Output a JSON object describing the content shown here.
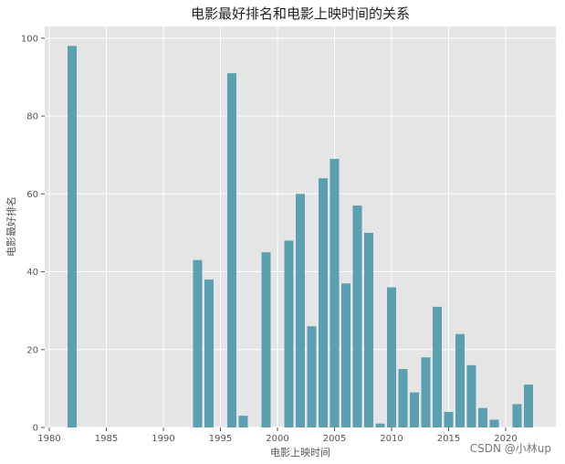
{
  "chart_data": {
    "type": "bar",
    "title": "电影最好排名和电影上映时间的关系",
    "xlabel": "电影上映时间",
    "ylabel": "电影最好排名",
    "xlim": [
      1979.6,
      2024.4
    ],
    "ylim": [
      0,
      103
    ],
    "xticks": [
      1980,
      1985,
      1990,
      1995,
      2000,
      2005,
      2010,
      2015,
      2020
    ],
    "yticks": [
      0,
      20,
      40,
      60,
      80,
      100
    ],
    "grid": true,
    "background": "#e5e5e5",
    "bar_color": "#5ba0b0",
    "x": [
      1982,
      1993,
      1994,
      1996,
      1997,
      1999,
      2001,
      2002,
      2003,
      2004,
      2005,
      2006,
      2007,
      2008,
      2009,
      2010,
      2011,
      2012,
      2013,
      2014,
      2015,
      2016,
      2017,
      2018,
      2019,
      2021,
      2022
    ],
    "values": [
      98,
      43,
      38,
      91,
      3,
      45,
      48,
      60,
      26,
      64,
      69,
      37,
      57,
      50,
      1,
      36,
      15,
      9,
      18,
      31,
      4,
      24,
      16,
      5,
      2,
      6,
      11
    ]
  },
  "watermark": "CSDN @小林up"
}
